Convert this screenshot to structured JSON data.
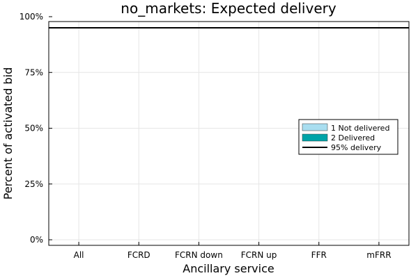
{
  "chart_data": {
    "type": "bar",
    "title": "no_markets: Expected delivery",
    "xlabel": "Ancillary service",
    "ylabel": "Percent of activated bid",
    "categories": [
      "All",
      "FCRD",
      "FCRN down",
      "FCRN up",
      "FFR",
      "mFRR"
    ],
    "ylim": [
      0,
      100
    ],
    "yticks": [
      0,
      25,
      50,
      75,
      100
    ],
    "ytick_labels": [
      "0%",
      "25%",
      "50%",
      "75%",
      "100%"
    ],
    "stacked": true,
    "grid": true,
    "legend_position": "right",
    "series": [
      {
        "name": "1 Not delivered",
        "color": "#a9def0",
        "values": [
          0,
          0,
          0,
          0,
          0,
          0
        ]
      },
      {
        "name": "2 Delivered",
        "color": "#00a4a8",
        "values": [
          0,
          0,
          0,
          0,
          0,
          0
        ]
      }
    ],
    "reference_line": {
      "name": "95% delivery",
      "value": 95,
      "color": "#000000"
    }
  }
}
